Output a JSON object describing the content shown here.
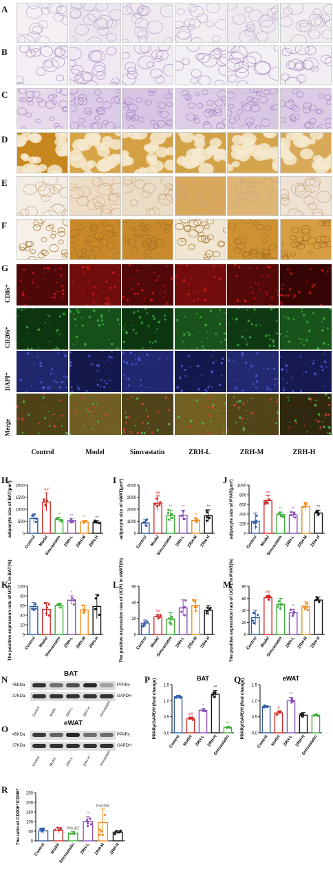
{
  "panels": {
    "A": "A",
    "B": "B",
    "C": "C",
    "D": "D",
    "E": "E",
    "F": "F",
    "G": "G",
    "H": "H",
    "I": "I",
    "J": "J",
    "K": "K",
    "L": "L",
    "M": "M",
    "N": "N",
    "O": "O",
    "P": "P",
    "Q": "Q",
    "R": "R"
  },
  "groups": [
    "Control",
    "Model",
    "Simvastatin",
    "ZRH-L",
    "ZRH-M",
    "ZRH-H"
  ],
  "fluor_rows": [
    "CD86⁺",
    "CD206⁺",
    "DAPI⁺",
    "Merge"
  ],
  "colors": {
    "control": "#2e5aa8",
    "model": "#d12a2a",
    "simvastatin": "#3fae3a",
    "zrhl": "#8b4fb8",
    "zrhm": "#f28c1e",
    "zrhh": "#111111"
  },
  "western": {
    "N": {
      "title": "BAT",
      "kda1": "45KDa",
      "kda2": "37KDa",
      "prot1": "PPARγ",
      "prot2": "GAPDH",
      "lanes": [
        "Control",
        "Model",
        "ZRH-L",
        "ZRH-H",
        "Simvastatin"
      ]
    },
    "O": {
      "title": "eWAT",
      "kda1": "45KDa",
      "kda2": "37KDa",
      "prot1": "PPARγ",
      "prot2": "GAPDH",
      "lanes": [
        "Control",
        "Model",
        "ZRH-L",
        "ZRH-H",
        "Simvastatin"
      ]
    }
  },
  "chart_data": [
    {
      "id": "H",
      "type": "bar",
      "ylabel": "adipocyte size of BAT(μm²)",
      "ylim": [
        0,
        2000
      ],
      "yticks": [
        0,
        500,
        1000,
        1500,
        2000
      ],
      "categories": [
        "Control",
        "Model",
        "Simvastatin",
        "ZRH-L",
        "ZRH-M",
        "ZRH-H"
      ],
      "values": [
        620,
        1300,
        560,
        520,
        470,
        450
      ],
      "errors": [
        180,
        380,
        90,
        80,
        60,
        70
      ],
      "sig": [
        "",
        "##",
        "**",
        "**",
        "**",
        "**"
      ]
    },
    {
      "id": "I",
      "type": "bar",
      "ylabel": "adipocyte size of eWAT(μm²)",
      "ylim": [
        0,
        4000
      ],
      "yticks": [
        0,
        1000,
        2000,
        3000,
        4000
      ],
      "categories": [
        "Control",
        "Model",
        "Simvastatin",
        "ZRH-L",
        "ZRH-M",
        "ZRH-H"
      ],
      "values": [
        850,
        2500,
        1480,
        1500,
        1050,
        1450
      ],
      "errors": [
        300,
        600,
        450,
        420,
        220,
        500
      ],
      "sig": [
        "",
        "##",
        "**",
        "**",
        "**",
        "**"
      ]
    },
    {
      "id": "J",
      "type": "bar",
      "ylabel": "adipocyte size of PVAT(μm²)",
      "ylim": [
        0,
        1000
      ],
      "yticks": [
        0,
        200,
        400,
        600,
        800,
        1000
      ],
      "categories": [
        "Control",
        "Model",
        "Simvastatin",
        "ZRH-L",
        "ZRH-M",
        "ZRH-H"
      ],
      "values": [
        250,
        680,
        390,
        380,
        560,
        420
      ],
      "errors": [
        170,
        100,
        50,
        60,
        80,
        60
      ],
      "sig": [
        "",
        "##",
        "**",
        "**",
        "",
        "**"
      ]
    },
    {
      "id": "K",
      "type": "bar",
      "ylabel": "The positive expression rate of UCP1 in BAT(%)",
      "ylim": [
        0,
        100
      ],
      "yticks": [
        0,
        20,
        40,
        60,
        80,
        100
      ],
      "categories": [
        "Control",
        "Model",
        "Simvastatin",
        "ZRH-L",
        "ZRH-M",
        "ZRH-H"
      ],
      "values": [
        58,
        52,
        60,
        71,
        51,
        58
      ],
      "errors": [
        8,
        14,
        5,
        9,
        10,
        25
      ],
      "sig": [
        "",
        "",
        "",
        "*",
        "",
        ""
      ]
    },
    {
      "id": "L",
      "type": "bar",
      "ylabel": "The positive expression rate of UCP1 in eWAT(%)",
      "ylim": [
        0,
        60
      ],
      "yticks": [
        0,
        20,
        40,
        60
      ],
      "categories": [
        "Control",
        "Model",
        "Simvastatin",
        "ZRH-L",
        "ZRH-M",
        "ZRH-H"
      ],
      "values": [
        14,
        22,
        19,
        33,
        36,
        30
      ],
      "errors": [
        4,
        3,
        8,
        10,
        7,
        6
      ],
      "sig": [
        "",
        "##",
        "",
        "",
        "*",
        ""
      ]
    },
    {
      "id": "M",
      "type": "bar",
      "ylabel": "The positive expression rate of UCP1 in PVAT(%)",
      "ylim": [
        0,
        80
      ],
      "yticks": [
        0,
        20,
        40,
        60,
        80
      ],
      "categories": [
        "Control",
        "Model",
        "Simvastatin",
        "ZRH-L",
        "ZRH-M",
        "ZRH-H"
      ],
      "values": [
        28,
        61,
        50,
        36,
        47,
        57
      ],
      "errors": [
        12,
        4,
        10,
        6,
        7,
        5
      ],
      "sig": [
        "",
        "##",
        "",
        "**",
        "",
        ""
      ]
    },
    {
      "id": "P",
      "type": "bar",
      "title": "BAT",
      "ylabel": "PPARγ/GAPDH (flod change)",
      "ylim": [
        0,
        1.5
      ],
      "yticks": [
        0.0,
        0.5,
        1.0,
        1.5
      ],
      "categories": [
        "Control",
        "Model",
        "ZRH-L",
        "ZRH-H",
        "Simvastatin"
      ],
      "values": [
        1.12,
        0.44,
        0.7,
        1.2,
        0.17
      ],
      "errors": [
        0.05,
        0.04,
        0.05,
        0.12,
        0.02
      ],
      "sig": [
        "",
        "##",
        "*",
        "**",
        "**"
      ]
    },
    {
      "id": "Q",
      "type": "bar",
      "title": "eWAT",
      "ylabel": "PPARγ/GAPDH (flod change)",
      "ylim": [
        0,
        1.5
      ],
      "yticks": [
        0.0,
        0.5,
        1.0,
        1.5
      ],
      "categories": [
        "Control",
        "Model",
        "ZRH-L",
        "ZRH-H",
        "Simvastatin"
      ],
      "values": [
        0.82,
        0.62,
        1.0,
        0.55,
        0.55
      ],
      "errors": [
        0.03,
        0.06,
        0.1,
        0.08,
        0.03
      ],
      "sig": [
        "",
        "#",
        "**",
        "",
        ""
      ]
    },
    {
      "id": "R",
      "type": "bar",
      "ylabel": "The ratio of CD206⁺/CD86⁺",
      "ylim": [
        0,
        250
      ],
      "yticks": [
        0,
        50,
        100,
        150,
        200,
        250
      ],
      "categories": [
        "Control",
        "Model",
        "Simvastatin",
        "ZRH-L",
        "ZRH-M",
        "ZRH-H"
      ],
      "values": [
        52,
        55,
        40,
        100,
        95,
        45
      ],
      "errors": [
        15,
        15,
        8,
        25,
        70,
        10
      ],
      "sig": [
        "",
        "",
        "P=0.057",
        "**",
        "P=0.099",
        ""
      ]
    }
  ]
}
